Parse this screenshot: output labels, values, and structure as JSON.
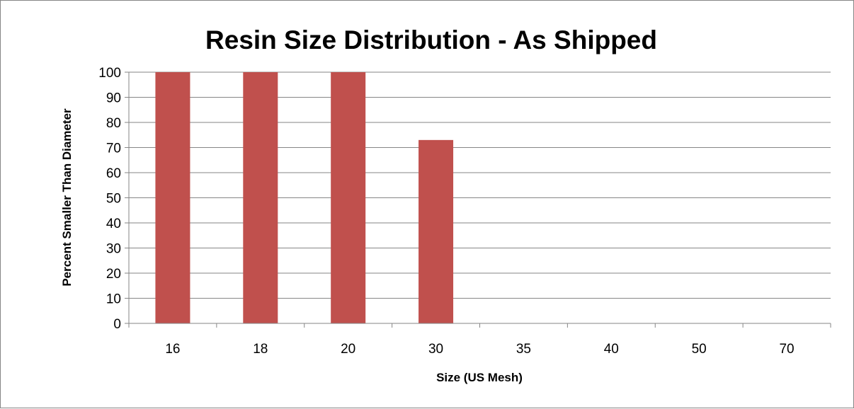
{
  "chart_data": {
    "type": "bar",
    "title": "Resin Size Distribution - As Shipped",
    "xlabel": "Size (US Mesh)",
    "ylabel": "Percent Smaller Than Diameter",
    "categories": [
      "16",
      "18",
      "20",
      "30",
      "35",
      "40",
      "50",
      "70"
    ],
    "values": [
      100,
      100,
      100,
      73,
      0,
      0,
      0,
      0
    ],
    "ylim": [
      0,
      100
    ],
    "yticks": [
      "0",
      "10",
      "20",
      "30",
      "40",
      "50",
      "60",
      "70",
      "80",
      "90",
      "100"
    ],
    "grid": true,
    "legend": "none",
    "bar_color": "#C0504D",
    "grid_color": "#868686"
  }
}
